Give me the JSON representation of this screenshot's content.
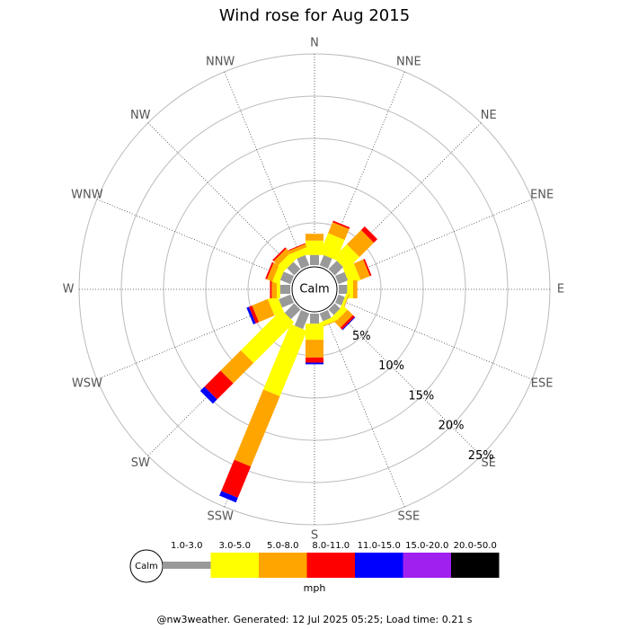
{
  "chart_data": {
    "type": "windrose",
    "title": "Wind rose for Aug 2015",
    "categories": [
      "N",
      "NNE",
      "NE",
      "ENE",
      "E",
      "ESE",
      "SE",
      "SSE",
      "S",
      "SSW",
      "SW",
      "WSW",
      "W",
      "WNW",
      "NW",
      "NNW"
    ],
    "calm_label": "Calm",
    "rlim": [
      0,
      25
    ],
    "rticks": [
      {
        "value": 5,
        "label": "5%"
      },
      {
        "value": 10,
        "label": "10%"
      },
      {
        "value": 15,
        "label": "15%"
      },
      {
        "value": 20,
        "label": "20%"
      },
      {
        "value": 25,
        "label": "25%"
      }
    ],
    "series": [
      {
        "name": "1.0-3.0",
        "color": "#999999",
        "values": [
          1.2,
          1.3,
          1.4,
          1.2,
          1.0,
          0.8,
          0.9,
          1.0,
          1.2,
          2.0,
          1.6,
          1.5,
          1.2,
          1.3,
          1.2,
          1.3
        ]
      },
      {
        "name": "3.0-5.0",
        "color": "#ffff00",
        "values": [
          1.7,
          2.6,
          2.2,
          1.4,
          0.7,
          0.3,
          0.7,
          0.5,
          1.9,
          8.4,
          6.8,
          1.2,
          0.4,
          0.8,
          1.0,
          0.8
        ]
      },
      {
        "name": "5.0-8.0",
        "color": "#ffa500",
        "values": [
          0.8,
          1.4,
          2.4,
          1.2,
          0.5,
          0.1,
          0.9,
          0.1,
          2.1,
          9.0,
          3.4,
          2.0,
          0.6,
          0.7,
          0.7,
          0.4
        ]
      },
      {
        "name": "8.0-11.0",
        "color": "#ff0000",
        "values": [
          0,
          0.2,
          0.6,
          0.2,
          0,
          0,
          0.3,
          0,
          0.6,
          4.0,
          2.7,
          0.4,
          0.2,
          0.2,
          0.2,
          0.1
        ]
      },
      {
        "name": "11.0-15.0",
        "color": "#0000ff",
        "values": [
          0,
          0,
          0,
          0,
          0,
          0,
          0.1,
          0,
          0.2,
          0.6,
          0.7,
          0.3,
          0,
          0,
          0,
          0
        ]
      },
      {
        "name": "15.0-20.0",
        "color": "#a020f0",
        "values": [
          0,
          0,
          0,
          0,
          0,
          0,
          0,
          0,
          0,
          0,
          0,
          0,
          0,
          0,
          0,
          0
        ]
      },
      {
        "name": "20.0-50.0",
        "color": "#000000",
        "values": [
          0,
          0,
          0,
          0,
          0,
          0,
          0,
          0,
          0,
          0,
          0,
          0,
          0,
          0,
          0,
          0
        ]
      }
    ],
    "legend_unit": "mph",
    "footer": "@nw3weather. Generated: 12 Jul 2025 05:25; Load time: 0.21 s"
  }
}
